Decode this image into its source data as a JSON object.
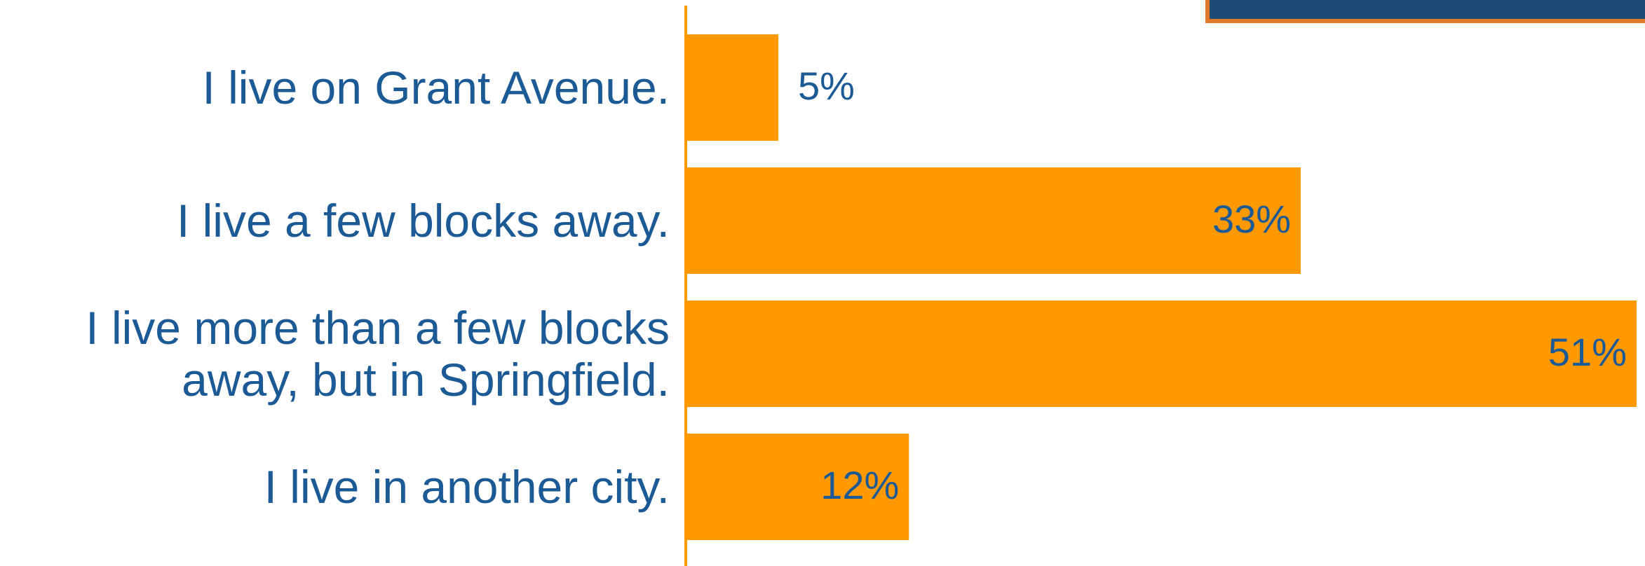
{
  "chart_data": {
    "type": "bar",
    "orientation": "horizontal",
    "categories": [
      "I live on Grant Avenue.",
      "I live a few blocks away.",
      "I live more than a few blocks away, but in Springfield.",
      "I live in another city."
    ],
    "values": [
      5,
      33,
      51,
      12
    ],
    "value_labels": [
      "5%",
      "33%",
      "51%",
      "12%"
    ],
    "color": "#fe9902"
  }
}
